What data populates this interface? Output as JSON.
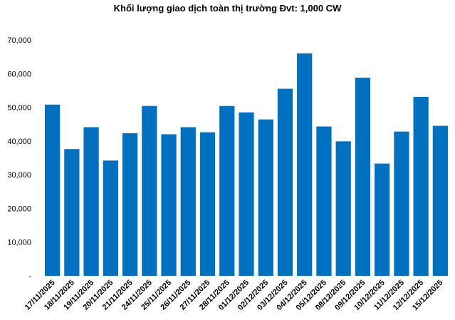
{
  "chart_data": {
    "type": "bar",
    "title": "Khối lượng giao dịch toàn thị trường Đvt: 1,000 CW",
    "xlabel": "",
    "ylabel": "",
    "ylim": [
      0,
      70000
    ],
    "y_ticks": [
      "-",
      "10,000",
      "20,000",
      "30,000",
      "40,000",
      "50,000",
      "60,000",
      "70,000"
    ],
    "grid": false,
    "legend": "none",
    "bar_color": "#0070C0",
    "categories": [
      "17/11/2025",
      "18/11/2025",
      "19/11/2025",
      "20/11/2025",
      "21/11/2025",
      "24/11/2025",
      "25/11/2025",
      "26/11/2025",
      "27/11/2025",
      "28/11/2025",
      "01/12/2025",
      "02/12/2025",
      "03/12/2025",
      "04/12/2025",
      "05/12/2025",
      "08/12/2025",
      "09/12/2025",
      "10/12/2025",
      "11/12/2025",
      "12/12/2025",
      "15/12/2025"
    ],
    "values": [
      50800,
      37600,
      44100,
      34200,
      42300,
      50400,
      42000,
      44100,
      42600,
      50400,
      48500,
      46400,
      55500,
      66000,
      44300,
      39900,
      58800,
      33300,
      42800,
      53100,
      44500
    ]
  }
}
